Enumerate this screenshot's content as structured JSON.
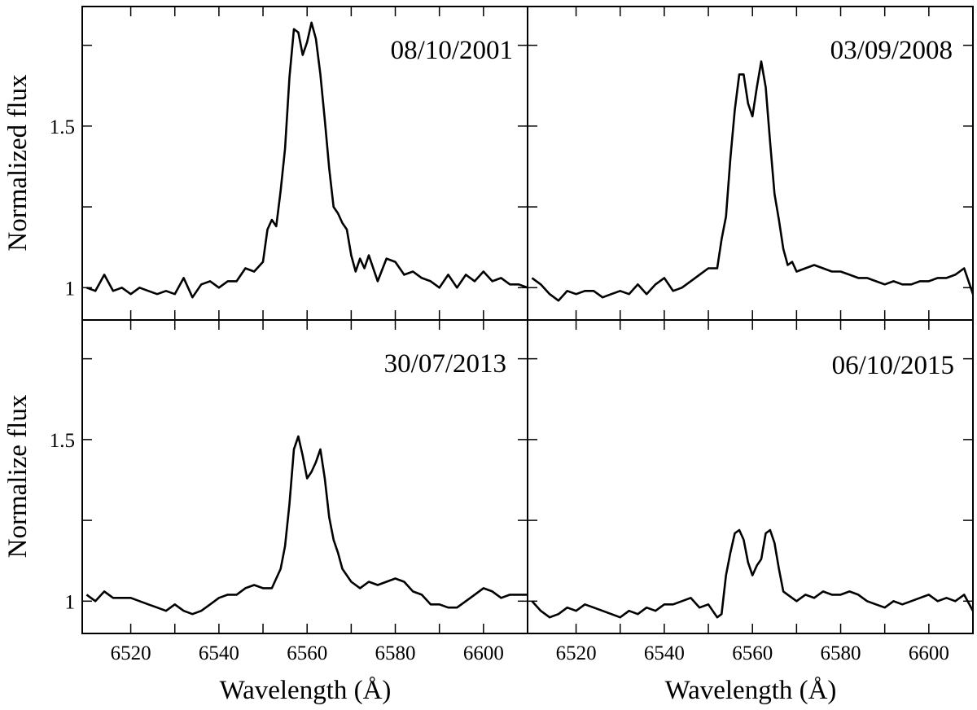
{
  "chart_data": [
    {
      "type": "line",
      "panel": "top-left",
      "annotation": "08/10/2001",
      "ylabel": "Normalized flux",
      "xlabel": "",
      "xlim": [
        6509,
        6610
      ],
      "ylim": [
        0.9,
        1.87
      ],
      "yticks": [
        1,
        1.5
      ],
      "ytick_labels": [
        "1",
        "1.5"
      ],
      "x": [
        6510,
        6512,
        6514,
        6516,
        6518,
        6520,
        6522,
        6524,
        6526,
        6528,
        6530,
        6532,
        6534,
        6536,
        6538,
        6540,
        6542,
        6544,
        6546,
        6548,
        6550,
        6551,
        6552,
        6553,
        6554,
        6555,
        6556,
        6557,
        6558,
        6559,
        6560,
        6561,
        6562,
        6563,
        6564,
        6565,
        6566,
        6567,
        6568,
        6569,
        6570,
        6571,
        6572,
        6573,
        6574,
        6576,
        6578,
        6580,
        6582,
        6584,
        6586,
        6588,
        6590,
        6592,
        6594,
        6596,
        6598,
        6600,
        6602,
        6604,
        6606,
        6608,
        6610
      ],
      "y": [
        1.0,
        0.99,
        1.04,
        0.99,
        1.0,
        0.98,
        1.0,
        0.99,
        0.98,
        0.99,
        0.98,
        1.03,
        0.97,
        1.01,
        1.02,
        1.0,
        1.02,
        1.02,
        1.06,
        1.05,
        1.08,
        1.18,
        1.21,
        1.19,
        1.3,
        1.43,
        1.65,
        1.8,
        1.79,
        1.72,
        1.76,
        1.82,
        1.77,
        1.66,
        1.52,
        1.37,
        1.25,
        1.23,
        1.2,
        1.18,
        1.1,
        1.05,
        1.09,
        1.06,
        1.1,
        1.02,
        1.09,
        1.08,
        1.04,
        1.05,
        1.03,
        1.02,
        1.0,
        1.04,
        1.0,
        1.04,
        1.02,
        1.05,
        1.02,
        1.03,
        1.01,
        1.01,
        1.0
      ]
    },
    {
      "type": "line",
      "panel": "top-right",
      "annotation": "03/09/2008",
      "ylabel": "",
      "xlabel": "",
      "xlim": [
        6509,
        6610
      ],
      "ylim": [
        0.9,
        1.87
      ],
      "x": [
        6510,
        6512,
        6514,
        6516,
        6518,
        6520,
        6522,
        6524,
        6526,
        6528,
        6530,
        6532,
        6534,
        6536,
        6538,
        6540,
        6542,
        6544,
        6546,
        6548,
        6550,
        6552,
        6553,
        6554,
        6555,
        6556,
        6557,
        6558,
        6559,
        6560,
        6561,
        6562,
        6563,
        6564,
        6565,
        6566,
        6567,
        6568,
        6569,
        6570,
        6572,
        6574,
        6576,
        6578,
        6580,
        6582,
        6584,
        6586,
        6588,
        6590,
        6592,
        6594,
        6596,
        6598,
        6600,
        6602,
        6604,
        6606,
        6608,
        6610
      ],
      "y": [
        1.03,
        1.01,
        0.98,
        0.96,
        0.99,
        0.98,
        0.99,
        0.99,
        0.97,
        0.98,
        0.99,
        0.98,
        1.01,
        0.98,
        1.01,
        1.03,
        0.99,
        1.0,
        1.02,
        1.04,
        1.06,
        1.06,
        1.15,
        1.22,
        1.4,
        1.55,
        1.66,
        1.66,
        1.57,
        1.53,
        1.62,
        1.7,
        1.62,
        1.45,
        1.29,
        1.21,
        1.12,
        1.07,
        1.08,
        1.05,
        1.06,
        1.07,
        1.06,
        1.05,
        1.05,
        1.04,
        1.03,
        1.03,
        1.02,
        1.01,
        1.02,
        1.01,
        1.01,
        1.02,
        1.02,
        1.03,
        1.03,
        1.04,
        1.06,
        0.98
      ]
    },
    {
      "type": "line",
      "panel": "bottom-left",
      "annotation": "30/07/2013",
      "ylabel": "Normalize flux",
      "xlabel": "Wavelength (Å)",
      "xlim": [
        6509,
        6610
      ],
      "ylim": [
        0.9,
        1.87
      ],
      "yticks": [
        1,
        1.5
      ],
      "ytick_labels": [
        "1",
        "1.5"
      ],
      "xticks": [
        6520,
        6540,
        6560,
        6580,
        6600
      ],
      "xtick_labels": [
        "6520",
        "6540",
        "6560",
        "6580",
        "6600"
      ],
      "x": [
        6510,
        6512,
        6514,
        6516,
        6518,
        6520,
        6522,
        6524,
        6526,
        6528,
        6530,
        6532,
        6534,
        6536,
        6538,
        6540,
        6542,
        6544,
        6546,
        6548,
        6550,
        6552,
        6554,
        6555,
        6556,
        6557,
        6558,
        6559,
        6560,
        6561,
        6562,
        6563,
        6564,
        6565,
        6566,
        6567,
        6568,
        6570,
        6572,
        6574,
        6576,
        6578,
        6580,
        6582,
        6584,
        6586,
        6588,
        6590,
        6592,
        6594,
        6596,
        6598,
        6600,
        6602,
        6604,
        6606,
        6608,
        6610
      ],
      "y": [
        1.02,
        1.0,
        1.03,
        1.01,
        1.01,
        1.01,
        1.0,
        0.99,
        0.98,
        0.97,
        0.99,
        0.97,
        0.96,
        0.97,
        0.99,
        1.01,
        1.02,
        1.02,
        1.04,
        1.05,
        1.04,
        1.04,
        1.1,
        1.17,
        1.3,
        1.47,
        1.51,
        1.45,
        1.38,
        1.4,
        1.43,
        1.47,
        1.38,
        1.26,
        1.19,
        1.15,
        1.1,
        1.06,
        1.04,
        1.06,
        1.05,
        1.06,
        1.07,
        1.06,
        1.03,
        1.02,
        0.99,
        0.99,
        0.98,
        0.98,
        1.0,
        1.02,
        1.04,
        1.03,
        1.01,
        1.02,
        1.02,
        1.02
      ]
    },
    {
      "type": "line",
      "panel": "bottom-right",
      "annotation": "06/10/2015",
      "ylabel": "",
      "xlabel": "Wavelength (Å)",
      "xlim": [
        6509,
        6610
      ],
      "ylim": [
        0.9,
        1.87
      ],
      "xticks": [
        6520,
        6540,
        6560,
        6580,
        6600
      ],
      "xtick_labels": [
        "6520",
        "6540",
        "6560",
        "6580",
        "6600"
      ],
      "x": [
        6510,
        6512,
        6514,
        6516,
        6518,
        6520,
        6522,
        6524,
        6526,
        6528,
        6530,
        6532,
        6534,
        6536,
        6538,
        6540,
        6542,
        6544,
        6546,
        6548,
        6550,
        6552,
        6553,
        6554,
        6555,
        6556,
        6557,
        6558,
        6559,
        6560,
        6561,
        6562,
        6563,
        6564,
        6565,
        6566,
        6567,
        6568,
        6570,
        6572,
        6574,
        6576,
        6578,
        6580,
        6582,
        6584,
        6586,
        6588,
        6590,
        6592,
        6594,
        6596,
        6598,
        6600,
        6602,
        6604,
        6606,
        6608,
        6610
      ],
      "y": [
        1.0,
        0.97,
        0.95,
        0.96,
        0.98,
        0.97,
        0.99,
        0.98,
        0.97,
        0.96,
        0.95,
        0.97,
        0.96,
        0.98,
        0.97,
        0.99,
        0.99,
        1.0,
        1.01,
        0.98,
        0.99,
        0.95,
        0.96,
        1.08,
        1.15,
        1.21,
        1.22,
        1.19,
        1.12,
        1.08,
        1.11,
        1.13,
        1.21,
        1.22,
        1.18,
        1.1,
        1.03,
        1.02,
        1.0,
        1.02,
        1.01,
        1.03,
        1.02,
        1.02,
        1.03,
        1.02,
        1.0,
        0.99,
        0.98,
        1.0,
        0.99,
        1.0,
        1.01,
        1.02,
        1.0,
        1.01,
        1.0,
        1.02,
        0.97
      ]
    }
  ]
}
